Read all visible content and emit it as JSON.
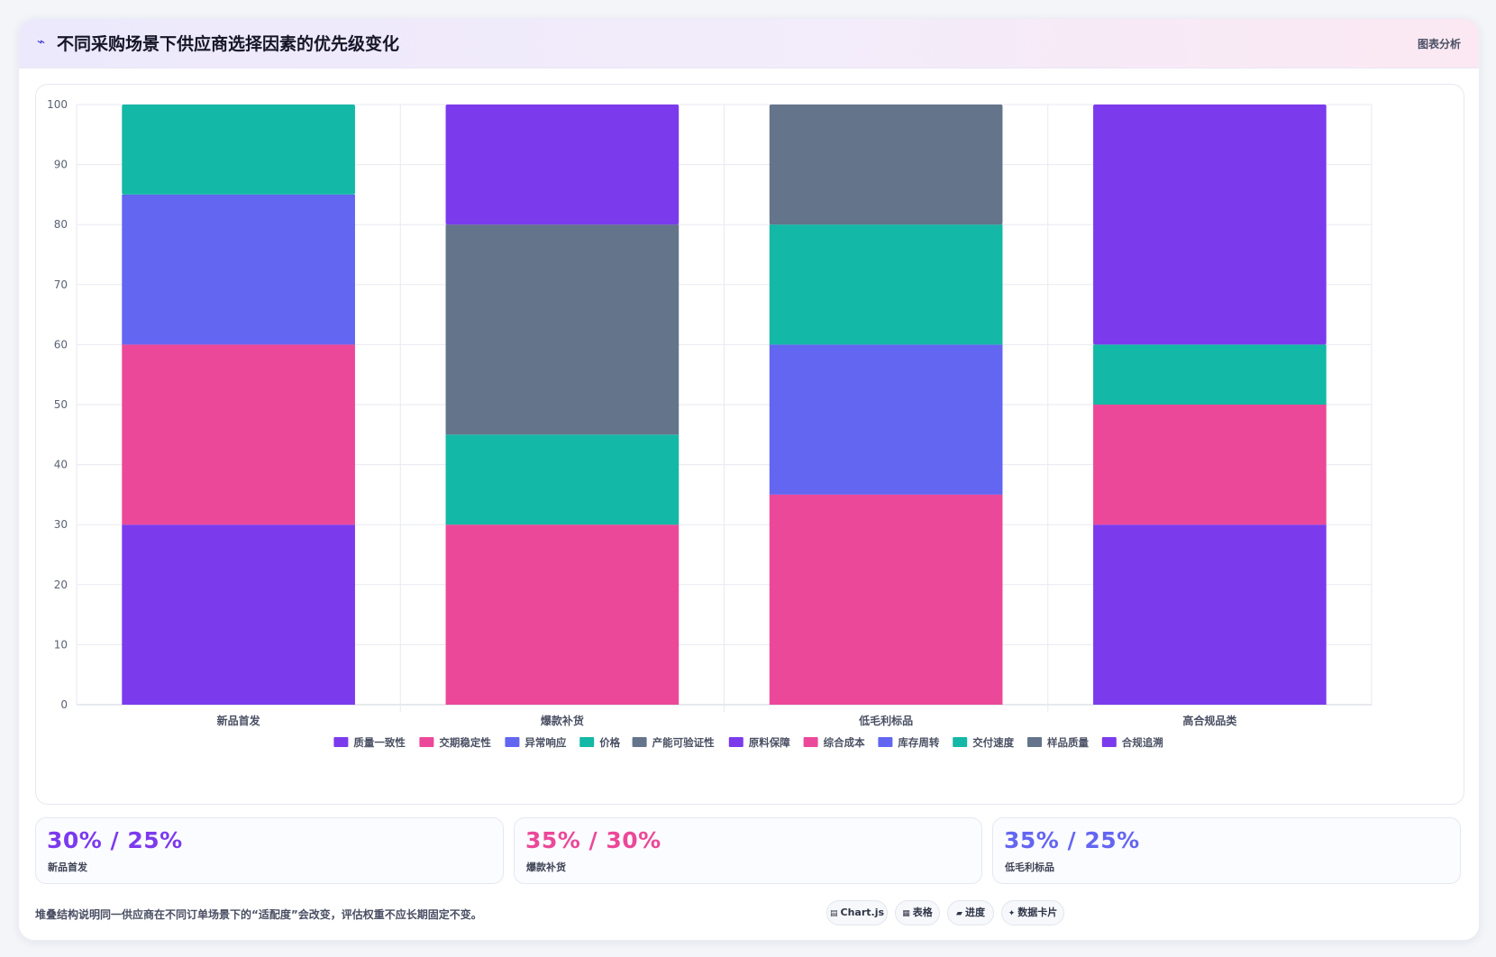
{
  "header": {
    "icon": "line-chart-icon",
    "title": "不同采购场景下供应商选择因素的优先级变化",
    "tag": "图表分析"
  },
  "chart_data": {
    "type": "bar",
    "stacked": true,
    "categories": [
      "新品首发",
      "爆款补货",
      "低毛利标品",
      "高合规品类"
    ],
    "ylim": [
      0,
      100
    ],
    "yticks": [
      0,
      10,
      20,
      30,
      40,
      50,
      60,
      70,
      80,
      90,
      100
    ],
    "grid": true,
    "legend_position": "bottom",
    "series": [
      {
        "name": "质量一致性",
        "color": "#7c3aed",
        "values": [
          30,
          0,
          0,
          0
        ]
      },
      {
        "name": "交期稳定性",
        "color": "#ec4899",
        "values": [
          30,
          0,
          0,
          0
        ]
      },
      {
        "name": "异常响应",
        "color": "#6366f1",
        "values": [
          25,
          0,
          0,
          0
        ]
      },
      {
        "name": "价格",
        "color": "#14b8a6",
        "values": [
          15,
          0,
          0,
          0
        ]
      },
      {
        "name": "产能可验证性",
        "color": "#64748b",
        "values": [
          0,
          0,
          0,
          0
        ]
      },
      {
        "name": "原料保障",
        "color": "#7c3aed",
        "values": [
          0,
          20,
          0,
          0
        ]
      },
      {
        "name": "综合成本",
        "color": "#ec4899",
        "values": [
          0,
          30,
          35,
          0
        ]
      },
      {
        "name": "库存周转",
        "color": "#6366f1",
        "values": [
          0,
          0,
          25,
          0
        ]
      },
      {
        "name": "交付速度",
        "color": "#14b8a6",
        "values": [
          0,
          15,
          20,
          0
        ]
      },
      {
        "name": "样品质量",
        "color": "#64748b",
        "values": [
          0,
          35,
          20,
          0
        ]
      },
      {
        "name": "合规追溯",
        "color": "#7c3aed",
        "values": [
          0,
          0,
          0,
          40
        ]
      }
    ],
    "extra_segments_note_free": [
      {
        "category": "高合规品类",
        "color": "#7c3aed",
        "value": 30
      },
      {
        "category": "高合规品类",
        "color": "#ec4899",
        "value": 20
      },
      {
        "category": "高合规品类",
        "color": "#14b8a6",
        "value": 10
      }
    ]
  },
  "stats": [
    {
      "value": "30% / 25%",
      "label": "新品首发",
      "color": "#7c3aed"
    },
    {
      "value": "35% / 30%",
      "label": "爆款补货",
      "color": "#ec4899"
    },
    {
      "value": "35% / 25%",
      "label": "低毛利标品",
      "color": "#6366f1"
    }
  ],
  "footer": {
    "note": "堆叠结构说明同一供应商在不同订单场景下的“适配度”会改变，评估权重不应长期固定不变。",
    "chips": [
      {
        "icon": "chart-icon",
        "glyph": "▤",
        "label": "Chart.js"
      },
      {
        "icon": "table-icon",
        "glyph": "▦",
        "label": "表格"
      },
      {
        "icon": "progress-icon",
        "glyph": "▰",
        "label": "进度"
      },
      {
        "icon": "sparkle-icon",
        "glyph": "✦",
        "label": "数据卡片"
      }
    ]
  }
}
